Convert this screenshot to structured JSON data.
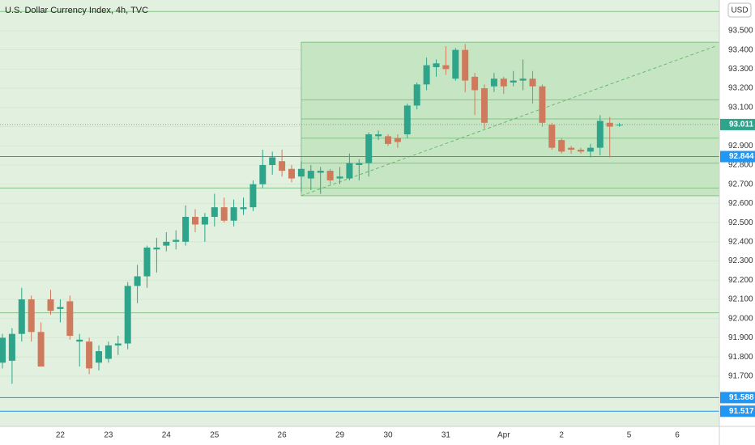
{
  "chart_data": {
    "type": "candlestick",
    "title": "U.S. Dollar Currency Index, 4h, TVC",
    "currency": "USD",
    "categories": [
      null,
      null,
      null,
      null,
      null,
      null,
      "22",
      null,
      null,
      null,
      null,
      "23",
      null,
      null,
      null,
      null,
      null,
      "24",
      null,
      null,
      null,
      null,
      "25",
      null,
      null,
      null,
      null,
      null,
      null,
      "26",
      null,
      null,
      null,
      null,
      null,
      "29",
      null,
      null,
      null,
      null,
      "30",
      null,
      null,
      null,
      null,
      null,
      "31",
      null,
      null,
      null,
      null,
      null,
      "Apr",
      null,
      null,
      null,
      null,
      null,
      "2",
      null,
      null,
      null,
      null,
      null,
      null,
      "5",
      null,
      null,
      null,
      null,
      "6",
      null
    ],
    "open": [
      91.77,
      91.78,
      91.92,
      92.1,
      91.93,
      92.1,
      92.05,
      92.09,
      91.88,
      91.88,
      91.77,
      91.79,
      91.86,
      91.87,
      92.17,
      92.22,
      92.36,
      92.38,
      92.4,
      92.4,
      92.53,
      92.49,
      92.53,
      92.58,
      92.51,
      92.57,
      92.58,
      92.7,
      92.8,
      92.82,
      92.78,
      92.74,
      92.73,
      92.76,
      92.77,
      92.73,
      92.73,
      92.8,
      92.81,
      92.95,
      92.95,
      92.94,
      92.96,
      93.11,
      93.22,
      93.31,
      93.32,
      93.25,
      93.4,
      93.26,
      93.2,
      93.21,
      93.25,
      93.23,
      93.24,
      93.25,
      93.21,
      93.01,
      92.93,
      92.89,
      92.88,
      92.87,
      92.89,
      93.02,
      93.01,
      null,
      null,
      null,
      null,
      null,
      null,
      null
    ],
    "high": [
      91.92,
      91.95,
      92.16,
      92.12,
      91.98,
      92.15,
      92.1,
      92.12,
      91.92,
      91.9,
      91.86,
      91.88,
      91.91,
      92.19,
      92.28,
      92.38,
      92.42,
      92.45,
      92.46,
      92.59,
      92.57,
      92.55,
      92.65,
      92.63,
      92.62,
      92.63,
      92.72,
      92.88,
      92.87,
      92.88,
      92.8,
      92.82,
      92.8,
      92.79,
      92.78,
      92.79,
      92.86,
      92.83,
      92.97,
      92.98,
      92.96,
      92.96,
      93.12,
      93.23,
      93.36,
      93.35,
      93.42,
      93.41,
      93.43,
      93.28,
      93.22,
      93.28,
      93.26,
      93.29,
      93.35,
      93.29,
      93.22,
      93.02,
      92.94,
      92.9,
      92.89,
      92.91,
      93.06,
      93.05,
      93.02,
      null,
      null,
      null,
      null,
      null,
      null,
      null
    ],
    "low": [
      91.74,
      91.66,
      91.88,
      91.88,
      91.75,
      92.02,
      91.98,
      91.89,
      91.75,
      91.71,
      91.73,
      91.77,
      91.81,
      91.84,
      92.08,
      92.16,
      92.24,
      92.35,
      92.36,
      92.38,
      92.45,
      92.4,
      92.48,
      92.5,
      92.48,
      92.54,
      92.56,
      92.68,
      92.75,
      92.74,
      92.71,
      92.66,
      92.67,
      92.65,
      92.7,
      92.7,
      92.72,
      92.72,
      92.74,
      92.93,
      92.9,
      92.89,
      92.94,
      93.09,
      93.19,
      93.26,
      93.27,
      93.24,
      93.18,
      93.06,
      92.99,
      93.18,
      93.17,
      93.21,
      93.19,
      93.12,
      93.0,
      92.88,
      92.86,
      92.86,
      92.86,
      92.84,
      92.85,
      92.84,
      93.0,
      null,
      null,
      null,
      null,
      null,
      null,
      null
    ],
    "close": [
      91.9,
      91.92,
      92.1,
      91.93,
      91.75,
      92.04,
      92.06,
      91.91,
      91.89,
      91.74,
      91.83,
      91.86,
      91.87,
      92.17,
      92.22,
      92.37,
      92.37,
      92.4,
      92.41,
      92.53,
      92.49,
      92.53,
      92.58,
      92.51,
      92.58,
      92.58,
      92.7,
      92.8,
      92.84,
      92.77,
      92.73,
      92.78,
      92.77,
      92.77,
      92.72,
      92.74,
      92.81,
      92.81,
      92.96,
      92.96,
      92.91,
      92.92,
      93.11,
      93.22,
      93.32,
      93.33,
      93.3,
      93.4,
      93.24,
      93.19,
      93.02,
      93.25,
      93.21,
      93.24,
      93.25,
      93.21,
      93.02,
      92.89,
      92.87,
      92.88,
      92.87,
      92.89,
      93.03,
      93.0,
      93.01,
      null,
      null,
      null,
      null,
      null,
      null,
      null
    ],
    "up_color": "#2ea58b",
    "down_color": "#cf7a5c",
    "ylim": [
      91.438,
      93.66
    ],
    "yticks": [
      {
        "value": 91.7,
        "label": "91.700"
      },
      {
        "value": 91.8,
        "label": "91.800"
      },
      {
        "value": 91.9,
        "label": "91.900"
      },
      {
        "value": 92.0,
        "label": "92.000"
      },
      {
        "value": 92.1,
        "label": "92.100"
      },
      {
        "value": 92.2,
        "label": "92.200"
      },
      {
        "value": 92.3,
        "label": "92.300"
      },
      {
        "value": 92.4,
        "label": "92.400"
      },
      {
        "value": 92.5,
        "label": "92.500"
      },
      {
        "value": 92.6,
        "label": "92.600"
      },
      {
        "value": 92.7,
        "label": "92.700"
      },
      {
        "value": 92.8,
        "label": "92.800"
      },
      {
        "value": 92.9,
        "label": "92.900"
      },
      {
        "value": 93.0,
        "label": "93.000"
      },
      {
        "value": 93.1,
        "label": "93.100"
      },
      {
        "value": 93.2,
        "label": "93.200"
      },
      {
        "value": 93.3,
        "label": "93.300"
      },
      {
        "value": 93.4,
        "label": "93.400"
      },
      {
        "value": 93.5,
        "label": "93.500"
      }
    ],
    "grid": true,
    "full_lines": [
      93.6,
      92.68,
      92.03
    ],
    "zone": {
      "from": 31,
      "top": 93.44,
      "bottom": 92.64,
      "lines": [
        93.14,
        93.04,
        92.94,
        92.81
      ],
      "color": "#c6e6c3"
    },
    "trendline": {
      "from": [
        31,
        92.64
      ],
      "to": [
        74,
        93.42
      ]
    },
    "levels": [
      {
        "value": 93.011,
        "color": "#2ea58b",
        "dotted": true
      },
      {
        "value": 92.844,
        "color": "#2196f3"
      },
      {
        "value": 91.588,
        "color": "#2196f3"
      },
      {
        "value": 91.517,
        "color": "#2196f3"
      }
    ]
  }
}
